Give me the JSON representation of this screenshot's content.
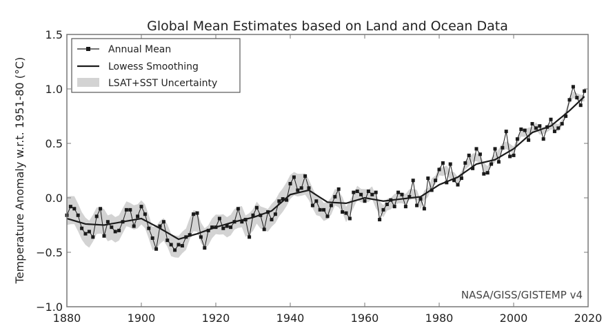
{
  "chart_data": {
    "type": "line",
    "title": "Global Mean Estimates based on Land and Ocean Data",
    "xlabel": "",
    "ylabel": "Temperature Anomaly w.r.t. 1951-80 (°C)",
    "xlim": [
      1880,
      2020
    ],
    "ylim": [
      -1.0,
      1.5
    ],
    "xticks": [
      1880,
      1900,
      1920,
      1940,
      1960,
      1980,
      2000,
      2020
    ],
    "yticks": [
      -1.0,
      -0.5,
      0.0,
      0.5,
      1.0,
      1.5
    ],
    "ytick_labels": [
      "−1.0",
      "−0.5",
      "0.0",
      "0.5",
      "1.0",
      "1.5"
    ],
    "grid": false,
    "legend_placement": "top-left",
    "annotation": "NASA/GISS/GISTEMP v4",
    "colors": {
      "line": "#1a1a1a",
      "band": "#d3d3d3"
    },
    "series": [
      {
        "name": "Annual Mean",
        "start_year": 1880,
        "values": [
          -0.16,
          -0.08,
          -0.1,
          -0.16,
          -0.28,
          -0.33,
          -0.31,
          -0.36,
          -0.17,
          -0.1,
          -0.35,
          -0.22,
          -0.27,
          -0.31,
          -0.3,
          -0.22,
          -0.11,
          -0.11,
          -0.26,
          -0.17,
          -0.08,
          -0.15,
          -0.28,
          -0.37,
          -0.47,
          -0.26,
          -0.22,
          -0.39,
          -0.43,
          -0.48,
          -0.43,
          -0.44,
          -0.36,
          -0.34,
          -0.15,
          -0.14,
          -0.36,
          -0.46,
          -0.3,
          -0.27,
          -0.27,
          -0.19,
          -0.28,
          -0.26,
          -0.27,
          -0.22,
          -0.1,
          -0.22,
          -0.2,
          -0.36,
          -0.16,
          -0.09,
          -0.16,
          -0.29,
          -0.13,
          -0.2,
          -0.15,
          -0.03,
          -0.01,
          -0.02,
          0.13,
          0.19,
          0.07,
          0.09,
          0.2,
          0.09,
          -0.07,
          -0.03,
          -0.11,
          -0.11,
          -0.17,
          -0.07,
          0.01,
          0.08,
          -0.13,
          -0.14,
          -0.19,
          0.05,
          0.06,
          0.03,
          -0.03,
          0.06,
          0.03,
          0.05,
          -0.2,
          -0.11,
          -0.06,
          -0.02,
          -0.08,
          0.05,
          0.03,
          -0.08,
          0.01,
          0.16,
          -0.07,
          -0.01,
          -0.1,
          0.18,
          0.07,
          0.16,
          0.26,
          0.32,
          0.14,
          0.31,
          0.16,
          0.12,
          0.18,
          0.32,
          0.39,
          0.27,
          0.45,
          0.4,
          0.22,
          0.23,
          0.31,
          0.45,
          0.33,
          0.46,
          0.61,
          0.38,
          0.39,
          0.54,
          0.63,
          0.62,
          0.53,
          0.68,
          0.64,
          0.66,
          0.54,
          0.65,
          0.72,
          0.61,
          0.64,
          0.68,
          0.75,
          0.9,
          1.02,
          0.92,
          0.85,
          0.98
        ]
      },
      {
        "name": "Lowess Smoothing",
        "points": [
          [
            1880,
            -0.19
          ],
          [
            1885,
            -0.24
          ],
          [
            1890,
            -0.25
          ],
          [
            1895,
            -0.22
          ],
          [
            1900,
            -0.19
          ],
          [
            1905,
            -0.28
          ],
          [
            1910,
            -0.38
          ],
          [
            1915,
            -0.33
          ],
          [
            1920,
            -0.27
          ],
          [
            1925,
            -0.22
          ],
          [
            1930,
            -0.18
          ],
          [
            1935,
            -0.12
          ],
          [
            1940,
            0.03
          ],
          [
            1945,
            0.07
          ],
          [
            1950,
            -0.04
          ],
          [
            1955,
            -0.05
          ],
          [
            1960,
            0.0
          ],
          [
            1965,
            -0.03
          ],
          [
            1970,
            -0.01
          ],
          [
            1975,
            0.01
          ],
          [
            1980,
            0.12
          ],
          [
            1985,
            0.19
          ],
          [
            1990,
            0.31
          ],
          [
            1995,
            0.35
          ],
          [
            2000,
            0.45
          ],
          [
            2005,
            0.6
          ],
          [
            2010,
            0.66
          ],
          [
            2015,
            0.8
          ],
          [
            2019,
            0.93
          ]
        ]
      },
      {
        "name": "LSAT+SST Uncertainty",
        "halfwidth_points": [
          [
            1880,
            0.13
          ],
          [
            1900,
            0.11
          ],
          [
            1920,
            0.09
          ],
          [
            1940,
            0.11
          ],
          [
            1950,
            0.08
          ],
          [
            1960,
            0.06
          ],
          [
            1980,
            0.04
          ],
          [
            2000,
            0.035
          ],
          [
            2019,
            0.03
          ]
        ]
      }
    ]
  }
}
